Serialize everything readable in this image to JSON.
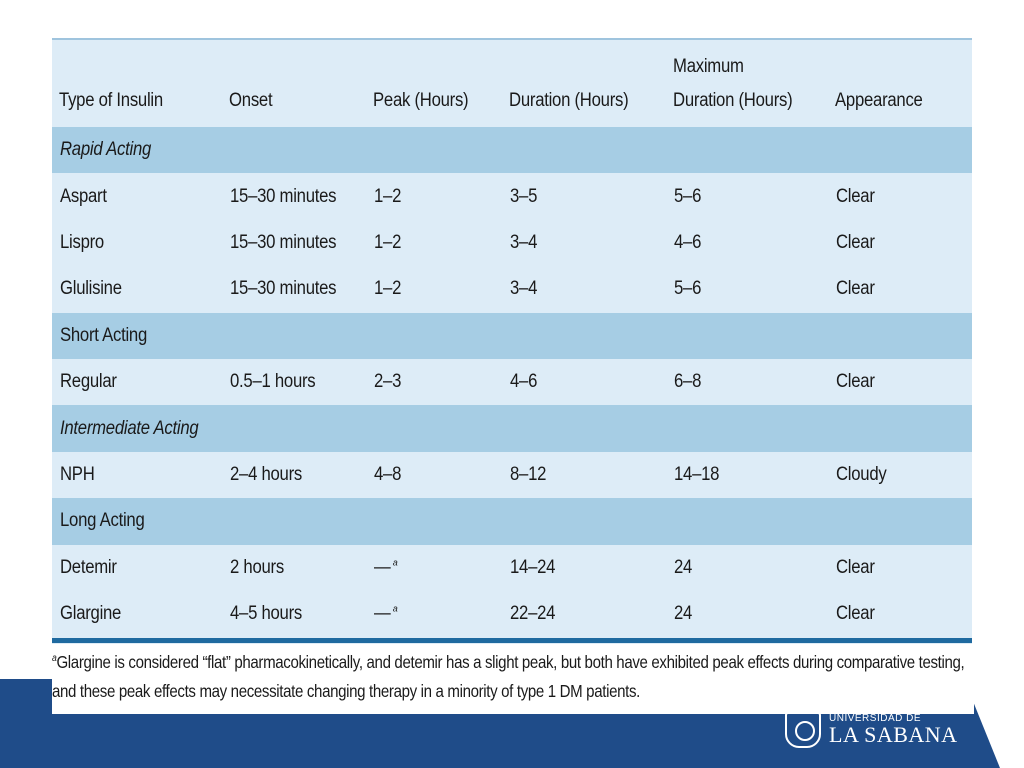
{
  "table": {
    "headers": [
      {
        "text": "Type of Insulin"
      },
      {
        "text": "Onset"
      },
      {
        "text": "Peak (Hours)"
      },
      {
        "text": "Duration (Hours)"
      },
      {
        "text": "Maximum\nDuration (Hours)"
      },
      {
        "text": "Appearance"
      }
    ],
    "sections": [
      {
        "category": "Rapid Acting",
        "italic": true,
        "rows": [
          [
            "Aspart",
            "15–30 minutes",
            "1–2",
            "3–5",
            "5–6",
            "Clear"
          ],
          [
            "Lispro",
            "15–30 minutes",
            "1–2",
            "3–4",
            "4–6",
            "Clear"
          ],
          [
            "Glulisine",
            "15–30 minutes",
            "1–2",
            "3–4",
            "5–6",
            "Clear"
          ]
        ]
      },
      {
        "category": "Short Acting",
        "italic": false,
        "rows": [
          [
            "Regular",
            "0.5–1 hours",
            "2–3",
            "4–6",
            "6–8",
            "Clear"
          ]
        ]
      },
      {
        "category": "Intermediate Acting",
        "italic": true,
        "rows": [
          [
            "NPH",
            "2–4 hours",
            "4–8",
            "8–12",
            "14–18",
            "Cloudy"
          ]
        ]
      },
      {
        "category": "Long Acting",
        "italic": false,
        "rows": [
          [
            "Detemir",
            "2 hours",
            "—",
            "14–24",
            "24",
            "Clear"
          ],
          [
            "Glargine",
            "4–5 hours",
            "—",
            "22–24",
            "24",
            "Clear"
          ]
        ]
      }
    ],
    "peak_note_mark": "a"
  },
  "footnote": {
    "mark": "a",
    "text": "Glargine is considered “flat” pharmacokinetically, and detemir has a slight peak, but both have exhibited peak effects during comparative testing, and these peak effects may necessitate changing therapy in a minority of type 1 DM patients."
  },
  "logo": {
    "line1": "UNIVERSIDAD DE",
    "line2": "LA SABANA"
  },
  "colors": {
    "panel": "#ddecf7",
    "category_row": "#a6cde4",
    "rule": "#1f6aa0",
    "band": "#1f4c89"
  }
}
